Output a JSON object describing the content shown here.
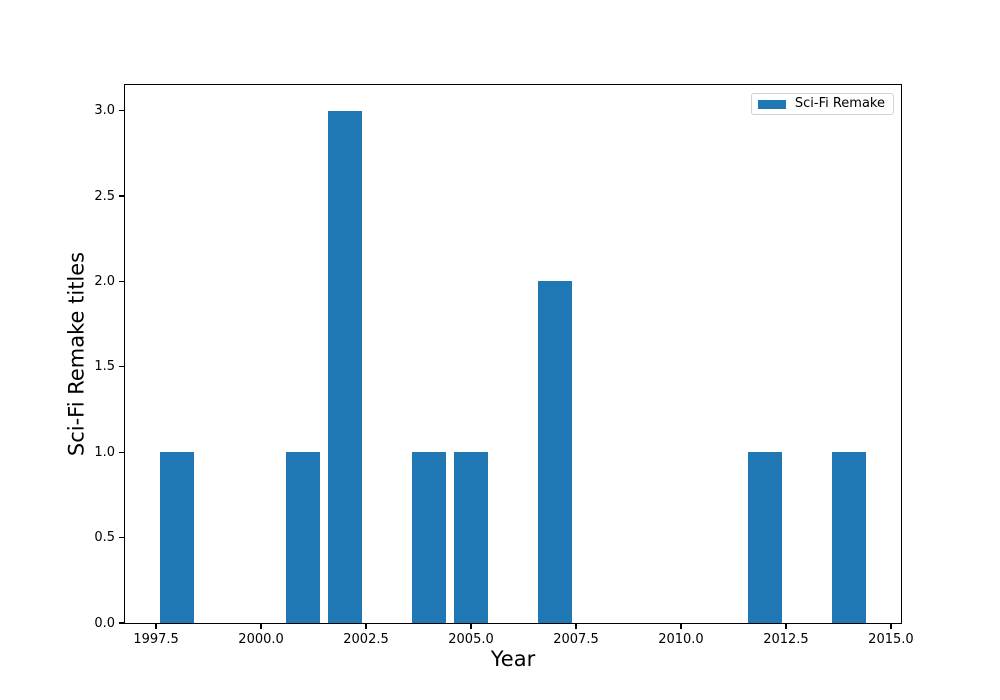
{
  "chart_data": {
    "type": "bar",
    "title": "",
    "xlabel": "Year",
    "ylabel": "Sci-Fi Remake titles",
    "legend": {
      "label": "Sci-Fi Remake",
      "position": "upper right"
    },
    "categories": [
      1998,
      2001,
      2002,
      2004,
      2005,
      2007,
      2012,
      2014
    ],
    "values": [
      1,
      1,
      3,
      1,
      1,
      2,
      1,
      1
    ],
    "bar_width": 0.8,
    "bar_color": "#1f77b4",
    "xlim": [
      1996.76,
      2015.24
    ],
    "ylim": [
      0,
      3.15
    ],
    "x_tick_labels": [
      "1997.5",
      "2000.0",
      "2002.5",
      "2005.0",
      "2007.5",
      "2010.0",
      "2012.5",
      "2015.0"
    ],
    "y_tick_labels": [
      "0.0",
      "0.5",
      "1.0",
      "1.5",
      "2.0",
      "2.5",
      "3.0"
    ],
    "grid": false,
    "axis_color": "#000000",
    "background_color": "#ffffff"
  }
}
